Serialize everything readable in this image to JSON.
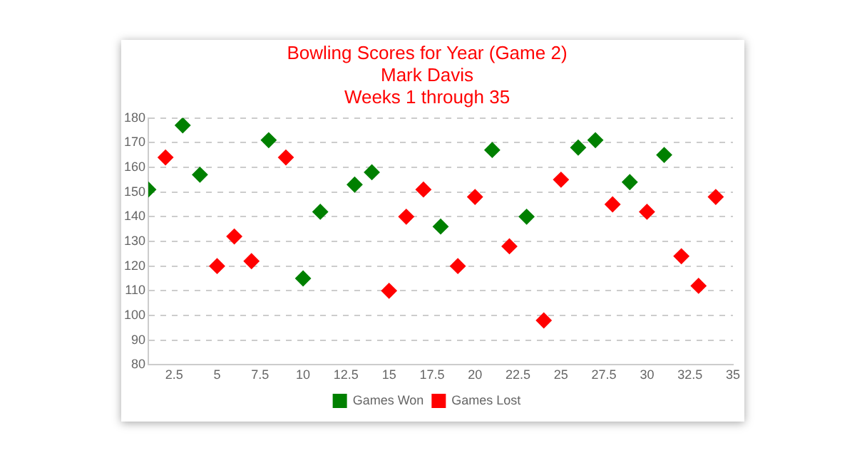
{
  "chart_data": {
    "type": "scatter",
    "title": "Bowling Scores for Year (Game 2)",
    "subtitle": "Mark Davis\nWeeks 1 through 35",
    "xlim": [
      1,
      35
    ],
    "xticks": [
      2.5,
      5,
      7.5,
      10,
      12.5,
      15,
      17.5,
      20,
      22.5,
      25,
      27.5,
      30,
      32.5,
      35
    ],
    "ylim": [
      80,
      180
    ],
    "yticks": [
      80,
      90,
      100,
      110,
      120,
      130,
      140,
      150,
      160,
      170,
      180
    ],
    "grid": "y",
    "legend": "bottom",
    "marker": "diamond",
    "series": [
      {
        "name": "Games Won",
        "color": "#008000",
        "x": [
          1,
          3,
          4,
          8,
          10,
          11,
          13,
          14,
          18,
          21,
          23,
          26,
          27,
          29,
          31
        ],
        "values": [
          151,
          177,
          157,
          171,
          115,
          142,
          153,
          158,
          136,
          167,
          140,
          168,
          171,
          154,
          165
        ]
      },
      {
        "name": "Games Lost",
        "color": "#ff0000",
        "x": [
          2,
          5,
          6,
          7,
          9,
          15,
          16,
          17,
          19,
          20,
          22,
          24,
          25,
          28,
          30,
          32,
          33,
          34
        ],
        "values": [
          164,
          120,
          132,
          122,
          164,
          110,
          140,
          151,
          120,
          148,
          128,
          98,
          155,
          145,
          142,
          124,
          112,
          148
        ]
      }
    ]
  }
}
